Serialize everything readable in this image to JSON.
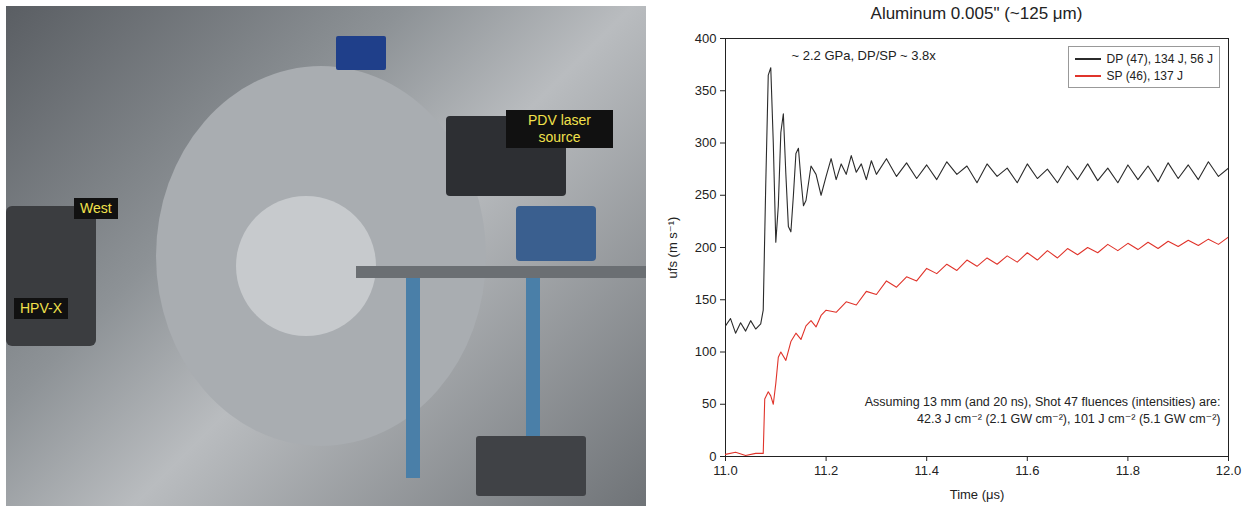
{
  "photo": {
    "labels": [
      "West",
      "HPV-X",
      "PDV laser source"
    ]
  },
  "chart_data": {
    "type": "line",
    "title": "Aluminum 0.005\" (~125 μm)",
    "x_label": "Time (μs)",
    "y_label": "ufs (m s⁻¹)",
    "xlim": [
      11.0,
      12.0
    ],
    "xticks": [
      {
        "value": 11,
        "label": "11.0"
      },
      {
        "value": 11.2,
        "label": "11.2"
      },
      {
        "value": 11.4,
        "label": "11.4"
      },
      {
        "value": 11.6,
        "label": "11.6"
      },
      {
        "value": 11.8,
        "label": "11.8"
      },
      {
        "value": 12,
        "label": "12.0"
      }
    ],
    "ylim": [
      0,
      400
    ],
    "yticks": [
      0,
      50,
      100,
      150,
      200,
      250,
      300,
      350,
      400
    ],
    "legend": "upper right",
    "annotations": [
      "~ 2.2 GPa, DP/SP ~ 3.8x",
      "Assuming 13 mm (and 20 ns), Shot 47 fluences (intensities) are:",
      "42.3 J cm⁻² (2.1 GW cm⁻²), 101 J cm⁻² (5.1 GW cm⁻²)"
    ],
    "series": [
      {
        "name": "DP (47), 134 J, 56 J",
        "color": "#2b2b2b",
        "x": [
          11.0,
          11.01,
          11.02,
          11.03,
          11.04,
          11.05,
          11.06,
          11.07,
          11.075,
          11.08,
          11.085,
          11.09,
          11.095,
          11.1,
          11.105,
          11.11,
          11.115,
          11.12,
          11.125,
          11.13,
          11.135,
          11.14,
          11.145,
          11.15,
          11.155,
          11.16,
          11.17,
          11.18,
          11.19,
          11.2,
          11.21,
          11.22,
          11.23,
          11.24,
          11.25,
          11.26,
          11.27,
          11.28,
          11.29,
          11.3,
          11.32,
          11.34,
          11.36,
          11.38,
          11.4,
          11.42,
          11.44,
          11.46,
          11.48,
          11.5,
          11.52,
          11.54,
          11.56,
          11.58,
          11.6,
          11.62,
          11.64,
          11.66,
          11.68,
          11.7,
          11.72,
          11.74,
          11.76,
          11.78,
          11.8,
          11.82,
          11.84,
          11.86,
          11.88,
          11.9,
          11.92,
          11.94,
          11.96,
          11.98,
          12.0
        ],
        "values": [
          125,
          132,
          118,
          128,
          120,
          130,
          122,
          127,
          140,
          260,
          365,
          372,
          300,
          205,
          240,
          310,
          328,
          270,
          220,
          215,
          250,
          290,
          295,
          265,
          240,
          245,
          278,
          270,
          250,
          268,
          285,
          265,
          280,
          270,
          288,
          272,
          280,
          265,
          283,
          270,
          285,
          268,
          281,
          266,
          279,
          265,
          282,
          270,
          278,
          262,
          280,
          268,
          276,
          262,
          280,
          266,
          275,
          262,
          278,
          265,
          280,
          264,
          276,
          262,
          279,
          265,
          278,
          263,
          281,
          266,
          279,
          265,
          282,
          268,
          276
        ]
      },
      {
        "name": "SP (46), 137 J",
        "color": "#e0342b",
        "x": [
          11.0,
          11.02,
          11.04,
          11.06,
          11.075,
          11.078,
          11.085,
          11.09,
          11.095,
          11.1,
          11.105,
          11.11,
          11.12,
          11.13,
          11.14,
          11.15,
          11.16,
          11.17,
          11.18,
          11.19,
          11.2,
          11.22,
          11.24,
          11.26,
          11.28,
          11.3,
          11.32,
          11.34,
          11.36,
          11.38,
          11.4,
          11.42,
          11.44,
          11.46,
          11.48,
          11.5,
          11.52,
          11.54,
          11.56,
          11.58,
          11.6,
          11.62,
          11.64,
          11.66,
          11.68,
          11.7,
          11.72,
          11.74,
          11.76,
          11.78,
          11.8,
          11.82,
          11.84,
          11.86,
          11.88,
          11.9,
          11.92,
          11.94,
          11.96,
          11.98,
          12.0
        ],
        "values": [
          2,
          4,
          1,
          3,
          3,
          55,
          62,
          58,
          50,
          70,
          95,
          100,
          92,
          110,
          118,
          112,
          125,
          130,
          124,
          135,
          140,
          138,
          148,
          145,
          158,
          155,
          168,
          162,
          172,
          168,
          180,
          175,
          184,
          178,
          188,
          182,
          190,
          184,
          192,
          186,
          195,
          188,
          197,
          190,
          199,
          193,
          200,
          195,
          203,
          197,
          204,
          198,
          205,
          199,
          206,
          201,
          207,
          202,
          208,
          203,
          210
        ]
      }
    ]
  }
}
